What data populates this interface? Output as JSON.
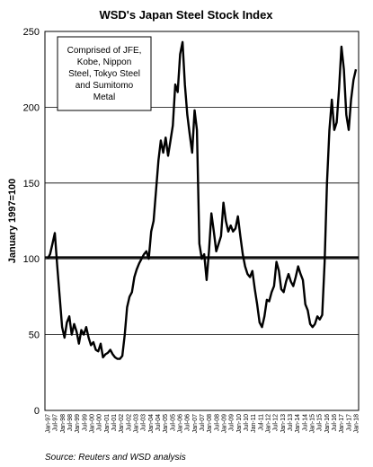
{
  "chart_data": {
    "type": "line",
    "title": "WSD's Japan Steel Stock Index",
    "ylabel": "January 1997=100",
    "ylim": [
      0,
      250
    ],
    "yticks": [
      0,
      50,
      100,
      150,
      200,
      250
    ],
    "reference_line": 101,
    "grid": "horizontal",
    "annotation_lines": [
      "Comprised of JFE,",
      "Kobe, Nippon",
      "Steel, Tokyo Steel",
      "and Sumitomo",
      "Metal"
    ],
    "source": "Source:  Reuters and WSD analysis",
    "x_labels": [
      "Jan-97",
      "Jul-97",
      "Jan-98",
      "Jul-98",
      "Jan-99",
      "Jul-99",
      "Jan-00",
      "Jul-00",
      "Jan-01",
      "Jul-01",
      "Jan-02",
      "Jul-02",
      "Jan-03",
      "Jul-03",
      "Jan-04",
      "Jul-04",
      "Jan-05",
      "Jul-05",
      "Jan-06",
      "Jul-06",
      "Jan-07",
      "Jul-07",
      "Jan-08",
      "Jul-08",
      "Jan-09",
      "Jul-09",
      "Jan-10",
      "Jul-10",
      "Jan-11",
      "Jul-11",
      "Jan-12",
      "Jul-12",
      "Jan-13",
      "Jul-13",
      "Jan-14",
      "Jul-14",
      "Jan-15",
      "Jul-15",
      "Jan-16",
      "Jul-16",
      "Jan-17",
      "Jul-17",
      "Jan-18"
    ],
    "series": [
      {
        "color": "#000000",
        "points": [
          [
            0,
            100
          ],
          [
            0.5,
            103
          ],
          [
            1,
            110
          ],
          [
            1.5,
            117
          ],
          [
            2,
            95
          ],
          [
            2.5,
            75
          ],
          [
            3,
            55
          ],
          [
            3.5,
            48
          ],
          [
            4,
            58
          ],
          [
            4.5,
            62
          ],
          [
            5,
            50
          ],
          [
            5.5,
            57
          ],
          [
            6,
            52
          ],
          [
            6.5,
            44
          ],
          [
            7,
            53
          ],
          [
            7.5,
            50
          ],
          [
            8,
            55
          ],
          [
            8.5,
            48
          ],
          [
            9,
            43
          ],
          [
            9.5,
            45
          ],
          [
            10,
            40
          ],
          [
            10.5,
            39
          ],
          [
            11,
            44
          ],
          [
            11.5,
            35
          ],
          [
            12,
            37
          ],
          [
            12.5,
            38
          ],
          [
            13,
            40
          ],
          [
            13.5,
            37
          ],
          [
            14,
            35
          ],
          [
            14.5,
            34
          ],
          [
            15,
            34
          ],
          [
            15.5,
            36
          ],
          [
            16,
            50
          ],
          [
            16.5,
            68
          ],
          [
            17,
            75
          ],
          [
            17.5,
            78
          ],
          [
            18,
            88
          ],
          [
            18.5,
            93
          ],
          [
            19,
            97
          ],
          [
            19.5,
            100
          ],
          [
            20,
            103
          ],
          [
            20.5,
            105
          ],
          [
            21,
            100
          ],
          [
            21.5,
            118
          ],
          [
            22,
            125
          ],
          [
            22.5,
            145
          ],
          [
            23,
            165
          ],
          [
            23.5,
            178
          ],
          [
            24,
            170
          ],
          [
            24.5,
            180
          ],
          [
            25,
            168
          ],
          [
            25.5,
            178
          ],
          [
            26,
            188
          ],
          [
            26.5,
            215
          ],
          [
            27,
            210
          ],
          [
            27.5,
            235
          ],
          [
            28,
            243
          ],
          [
            28.5,
            215
          ],
          [
            29,
            195
          ],
          [
            29.5,
            182
          ],
          [
            30,
            170
          ],
          [
            30.5,
            198
          ],
          [
            31,
            185
          ],
          [
            31.5,
            110
          ],
          [
            32,
            100
          ],
          [
            32.5,
            103
          ],
          [
            33,
            86
          ],
          [
            33.5,
            105
          ],
          [
            34,
            130
          ],
          [
            34.5,
            118
          ],
          [
            35,
            105
          ],
          [
            35.5,
            110
          ],
          [
            36,
            115
          ],
          [
            36.5,
            137
          ],
          [
            37,
            125
          ],
          [
            37.5,
            118
          ],
          [
            38,
            122
          ],
          [
            38.5,
            118
          ],
          [
            39,
            120
          ],
          [
            39.5,
            128
          ],
          [
            40,
            115
          ],
          [
            40.5,
            103
          ],
          [
            41,
            95
          ],
          [
            41.5,
            90
          ],
          [
            42,
            88
          ],
          [
            42.5,
            92
          ],
          [
            43,
            80
          ],
          [
            43.5,
            70
          ],
          [
            44,
            58
          ],
          [
            44.5,
            55
          ],
          [
            45,
            62
          ],
          [
            45.5,
            73
          ],
          [
            46,
            72
          ],
          [
            46.5,
            78
          ],
          [
            47,
            82
          ],
          [
            47.5,
            98
          ],
          [
            48,
            92
          ],
          [
            48.5,
            80
          ],
          [
            49,
            78
          ],
          [
            49.5,
            85
          ],
          [
            50,
            90
          ],
          [
            50.5,
            85
          ],
          [
            51,
            82
          ],
          [
            51.5,
            88
          ],
          [
            52,
            95
          ],
          [
            52.5,
            90
          ],
          [
            53,
            86
          ],
          [
            53.5,
            70
          ],
          [
            54,
            66
          ],
          [
            54.5,
            57
          ],
          [
            55,
            55
          ],
          [
            55.5,
            57
          ],
          [
            56,
            62
          ],
          [
            56.5,
            60
          ],
          [
            57,
            63
          ],
          [
            57.5,
            98
          ],
          [
            58,
            150
          ],
          [
            58.5,
            185
          ],
          [
            59,
            205
          ],
          [
            59.5,
            185
          ],
          [
            60,
            190
          ],
          [
            60.5,
            212
          ],
          [
            61,
            240
          ],
          [
            61.5,
            225
          ],
          [
            62,
            195
          ],
          [
            62.5,
            185
          ],
          [
            63,
            205
          ],
          [
            63.5,
            218
          ],
          [
            64,
            225
          ]
        ]
      }
    ]
  }
}
